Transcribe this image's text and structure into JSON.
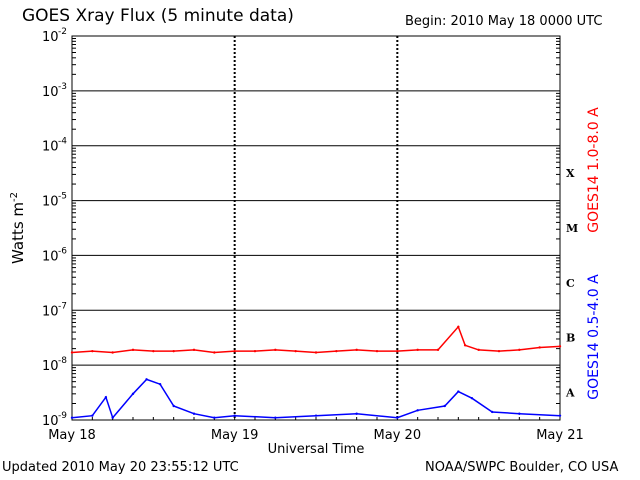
{
  "header": {
    "title": "GOES Xray Flux (5 minute data)",
    "begin": "Begin:  2010 May 18 0000 UTC"
  },
  "footer": {
    "updated": "Updated 2010 May 20 23:55:12 UTC",
    "credit": "NOAA/SWPC Boulder, CO USA"
  },
  "chart_data": {
    "type": "line",
    "title": "GOES Xray Flux (5 minute data)",
    "xlabel": "Universal Time",
    "ylabel": "Watts m",
    "ylabel_sup": "-2",
    "yscale": "log",
    "ylim": [
      1e-09,
      0.01
    ],
    "y_ticks": [
      {
        "exp": -9,
        "label": "10",
        "sup": "-9"
      },
      {
        "exp": -8,
        "label": "10",
        "sup": "-8"
      },
      {
        "exp": -7,
        "label": "10",
        "sup": "-7"
      },
      {
        "exp": -6,
        "label": "10",
        "sup": "-6"
      },
      {
        "exp": -5,
        "label": "10",
        "sup": "-5"
      },
      {
        "exp": -4,
        "label": "10",
        "sup": "-4"
      },
      {
        "exp": -3,
        "label": "10",
        "sup": "-3"
      },
      {
        "exp": -2,
        "label": "10",
        "sup": "-2"
      }
    ],
    "x_ticks": [
      "May 18",
      "May 19",
      "May 20",
      "May 21"
    ],
    "xlim": [
      "2010-05-18 00:00",
      "2010-05-21 00:00"
    ],
    "flare_classes": [
      {
        "label": "X",
        "exp": -4
      },
      {
        "label": "M",
        "exp": -5
      },
      {
        "label": "C",
        "exp": -6
      },
      {
        "label": "B",
        "exp": -7
      },
      {
        "label": "A",
        "exp": -8
      }
    ],
    "grid": "horizontal lines at each decade; dashed vertical at day boundaries",
    "colors": {
      "long": "#ff0000",
      "short": "#0000ff"
    },
    "series": [
      {
        "name": "GOES14 1.0-8.0 A",
        "color": "#ff0000",
        "points": [
          [
            "2010-05-18 00:00",
            1.7e-08
          ],
          [
            "2010-05-18 03:00",
            1.8e-08
          ],
          [
            "2010-05-18 06:00",
            1.7e-08
          ],
          [
            "2010-05-18 09:00",
            1.9e-08
          ],
          [
            "2010-05-18 12:00",
            1.8e-08
          ],
          [
            "2010-05-18 15:00",
            1.8e-08
          ],
          [
            "2010-05-18 18:00",
            1.9e-08
          ],
          [
            "2010-05-18 21:00",
            1.7e-08
          ],
          [
            "2010-05-19 00:00",
            1.8e-08
          ],
          [
            "2010-05-19 03:00",
            1.8e-08
          ],
          [
            "2010-05-19 06:00",
            1.9e-08
          ],
          [
            "2010-05-19 09:00",
            1.8e-08
          ],
          [
            "2010-05-19 12:00",
            1.7e-08
          ],
          [
            "2010-05-19 15:00",
            1.8e-08
          ],
          [
            "2010-05-19 18:00",
            1.9e-08
          ],
          [
            "2010-05-19 21:00",
            1.8e-08
          ],
          [
            "2010-05-20 00:00",
            1.8e-08
          ],
          [
            "2010-05-20 03:00",
            1.9e-08
          ],
          [
            "2010-05-20 06:00",
            1.9e-08
          ],
          [
            "2010-05-20 09:00",
            5e-08
          ],
          [
            "2010-05-20 10:00",
            2.3e-08
          ],
          [
            "2010-05-20 12:00",
            1.9e-08
          ],
          [
            "2010-05-20 15:00",
            1.8e-08
          ],
          [
            "2010-05-20 18:00",
            1.9e-08
          ],
          [
            "2010-05-20 21:00",
            2.1e-08
          ],
          [
            "2010-05-21 00:00",
            2.2e-08
          ]
        ]
      },
      {
        "name": "GOES14 0.5-4.0 A",
        "color": "#0000ff",
        "points": [
          [
            "2010-05-18 00:00",
            1.1e-09
          ],
          [
            "2010-05-18 03:00",
            1.2e-09
          ],
          [
            "2010-05-18 05:00",
            2.6e-09
          ],
          [
            "2010-05-18 06:00",
            1.1e-09
          ],
          [
            "2010-05-18 09:00",
            3e-09
          ],
          [
            "2010-05-18 11:00",
            5.5e-09
          ],
          [
            "2010-05-18 13:00",
            4.5e-09
          ],
          [
            "2010-05-18 15:00",
            1.8e-09
          ],
          [
            "2010-05-18 18:00",
            1.3e-09
          ],
          [
            "2010-05-18 21:00",
            1.1e-09
          ],
          [
            "2010-05-19 00:00",
            1.2e-09
          ],
          [
            "2010-05-19 06:00",
            1.1e-09
          ],
          [
            "2010-05-19 12:00",
            1.2e-09
          ],
          [
            "2010-05-19 18:00",
            1.3e-09
          ],
          [
            "2010-05-20 00:00",
            1.1e-09
          ],
          [
            "2010-05-20 03:00",
            1.5e-09
          ],
          [
            "2010-05-20 07:00",
            1.8e-09
          ],
          [
            "2010-05-20 09:00",
            3.3e-09
          ],
          [
            "2010-05-20 11:00",
            2.5e-09
          ],
          [
            "2010-05-20 14:00",
            1.4e-09
          ],
          [
            "2010-05-20 18:00",
            1.3e-09
          ],
          [
            "2010-05-21 00:00",
            1.2e-09
          ]
        ]
      }
    ]
  }
}
